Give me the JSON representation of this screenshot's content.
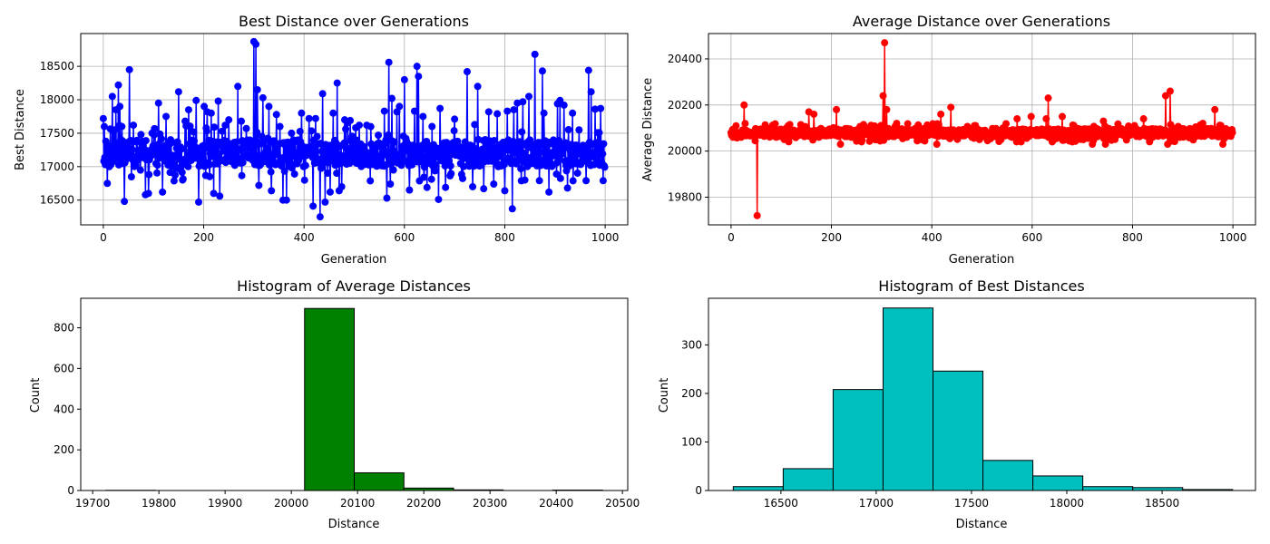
{
  "chart_data": [
    {
      "id": "best-line",
      "type": "line",
      "title": "Best Distance over Generations",
      "xlabel": "Generation",
      "ylabel": "Best Distance",
      "xlim": [
        -45,
        1045
      ],
      "ylim": [
        16130,
        18990
      ],
      "xticks": [
        0,
        200,
        400,
        600,
        800,
        1000
      ],
      "yticks": [
        16500,
        17000,
        17500,
        18000,
        18500
      ],
      "grid": true,
      "color": "#0000ff",
      "marker": "circle",
      "summary": {
        "base": 17200,
        "spread": 200,
        "extra_spread": 420,
        "n_points": 1000
      },
      "series": [
        {
          "x": [
            0,
            2,
            5,
            8,
            12,
            18,
            22,
            25,
            30,
            33,
            37,
            42,
            45,
            52,
            60,
            75,
            84,
            90,
            97,
            110,
            118,
            125,
            150,
            158,
            163,
            170,
            180,
            185,
            190,
            201,
            207,
            215,
            220,
            229,
            232,
            250,
            268,
            275,
            285,
            300,
            304,
            307,
            310,
            318,
            330,
            335,
            345,
            352,
            358,
            365,
            375,
            395,
            410,
            418,
            423,
            432,
            437,
            442,
            452,
            458,
            466,
            470,
            475,
            481,
            487,
            492,
            510,
            525,
            548,
            560,
            565,
            569,
            572,
            575,
            585,
            590,
            600,
            610,
            620,
            625,
            628,
            637,
            645,
            655,
            668,
            671,
            682,
            700,
            725,
            736,
            740,
            746,
            758,
            768,
            778,
            785,
            800,
            805,
            815,
            818,
            825,
            836,
            840,
            848,
            860,
            869,
            875,
            878,
            888,
            905,
            910,
            918,
            925,
            935,
            948,
            962,
            967,
            972,
            980,
            985,
            991,
            996
          ],
          "y": [
            17720,
            17600,
            17380,
            16750,
            17000,
            18050,
            17550,
            17850,
            18220,
            17900,
            17600,
            16480,
            17300,
            18450,
            17620,
            17480,
            16580,
            16600,
            17500,
            17950,
            16620,
            17750,
            18120,
            16800,
            17680,
            17850,
            17520,
            17990,
            16470,
            17900,
            17820,
            17800,
            16600,
            17980,
            16560,
            17700,
            18200,
            17680,
            17570,
            18870,
            18830,
            18150,
            16720,
            18030,
            17900,
            16640,
            17780,
            17600,
            16500,
            16500,
            17500,
            17800,
            17720,
            16410,
            17720,
            16250,
            18090,
            16470,
            16620,
            17800,
            18250,
            16640,
            16700,
            17700,
            17660,
            17690,
            17620,
            17620,
            17470,
            17830,
            16530,
            18560,
            16740,
            18020,
            17820,
            17900,
            18300,
            16650,
            17830,
            18500,
            18350,
            17750,
            16690,
            17600,
            16510,
            17870,
            16690,
            17710,
            18420,
            16700,
            17630,
            18200,
            16670,
            17820,
            16740,
            17790,
            16640,
            17830,
            16370,
            17850,
            17950,
            17970,
            16800,
            18050,
            18680,
            16790,
            18430,
            17800,
            16620,
            17940,
            17990,
            17920,
            16680,
            17800,
            17550,
            16790,
            18440,
            18120,
            17860,
            17510,
            17870,
            16790
          ]
        }
      ]
    },
    {
      "id": "avg-line",
      "type": "line",
      "title": "Average Distance over Generations",
      "xlabel": "Generation",
      "ylabel": "Average Distance",
      "xlim": [
        -45,
        1045
      ],
      "ylim": [
        19680,
        20510
      ],
      "xticks": [
        0,
        200,
        400,
        600,
        800,
        1000
      ],
      "yticks": [
        19800,
        20000,
        20200,
        20400
      ],
      "grid": true,
      "color": "#ff0000",
      "marker": "circle",
      "summary": {
        "base": 20080,
        "spread": 18,
        "extra_spread": 40,
        "n_points": 1000
      },
      "series": [
        {
          "x": [
            0,
            4,
            10,
            16,
            20,
            26,
            30,
            40,
            50,
            52,
            70,
            90,
            110,
            130,
            150,
            155,
            165,
            175,
            185,
            200,
            210,
            218,
            222,
            240,
            260,
            270,
            280,
            290,
            303,
            306,
            310,
            330,
            350,
            365,
            380,
            398,
            410,
            418,
            428,
            438,
            442,
            460,
            480,
            500,
            520,
            540,
            560,
            570,
            578,
            598,
            600,
            610,
            628,
            632,
            640,
            660,
            680,
            700,
            720,
            742,
            746,
            760,
            780,
            800,
            822,
            840,
            860,
            866,
            870,
            875,
            880,
            900,
            920,
            940,
            960,
            964,
            980,
            1000
          ],
          "y": [
            20080,
            20060,
            20110,
            20080,
            20060,
            20200,
            20090,
            20070,
            20080,
            19720,
            20080,
            20060,
            20100,
            20080,
            20070,
            20170,
            20160,
            20060,
            20080,
            20070,
            20180,
            20030,
            20090,
            20060,
            20040,
            20100,
            20070,
            20050,
            20240,
            20470,
            20180,
            20120,
            20060,
            20070,
            20050,
            20080,
            20030,
            20160,
            20090,
            20190,
            20070,
            20090,
            20060,
            20080,
            20070,
            20090,
            20060,
            20140,
            20040,
            20150,
            20090,
            20080,
            20140,
            20230,
            20040,
            20150,
            20040,
            20080,
            20030,
            20130,
            20030,
            20080,
            20070,
            20080,
            20140,
            20060,
            20070,
            20240,
            20030,
            20260,
            20100,
            20070,
            20090,
            20120,
            20090,
            20180,
            20030,
            20080
          ]
        }
      ]
    },
    {
      "id": "avg-hist",
      "type": "bar",
      "title": "Histogram of Average Distances",
      "xlabel": "Distance",
      "ylabel": "Count",
      "xlim": [
        19682,
        20508
      ],
      "ylim": [
        0,
        945
      ],
      "xticks": [
        19700,
        19800,
        19900,
        20000,
        20100,
        20200,
        20300,
        20400,
        20500
      ],
      "yticks": [
        0,
        200,
        400,
        600,
        800
      ],
      "grid": false,
      "color": "#008000",
      "edge_color": "#000000",
      "bin_edges": [
        19720,
        19795,
        19870,
        19945,
        20020,
        20095,
        20170,
        20245,
        20320,
        20395,
        20470
      ],
      "values": [
        1,
        0,
        0,
        0,
        895,
        87,
        12,
        3,
        0,
        2
      ]
    },
    {
      "id": "best-hist",
      "type": "bar",
      "title": "Histogram of Best Distances",
      "xlabel": "Distance",
      "ylabel": "Count",
      "xlim": [
        16120,
        18990
      ],
      "ylim": [
        0,
        396
      ],
      "xticks": [
        16500,
        17000,
        17500,
        18000,
        18500
      ],
      "yticks": [
        0,
        100,
        200,
        300
      ],
      "grid": false,
      "color": "#00bfbf",
      "edge_color": "#000000",
      "bin_edges": [
        16250,
        16512,
        16774,
        17036,
        17298,
        17560,
        17822,
        18084,
        18346,
        18608,
        18870
      ],
      "values": [
        8,
        45,
        208,
        376,
        246,
        62,
        30,
        8,
        6,
        2
      ]
    }
  ]
}
